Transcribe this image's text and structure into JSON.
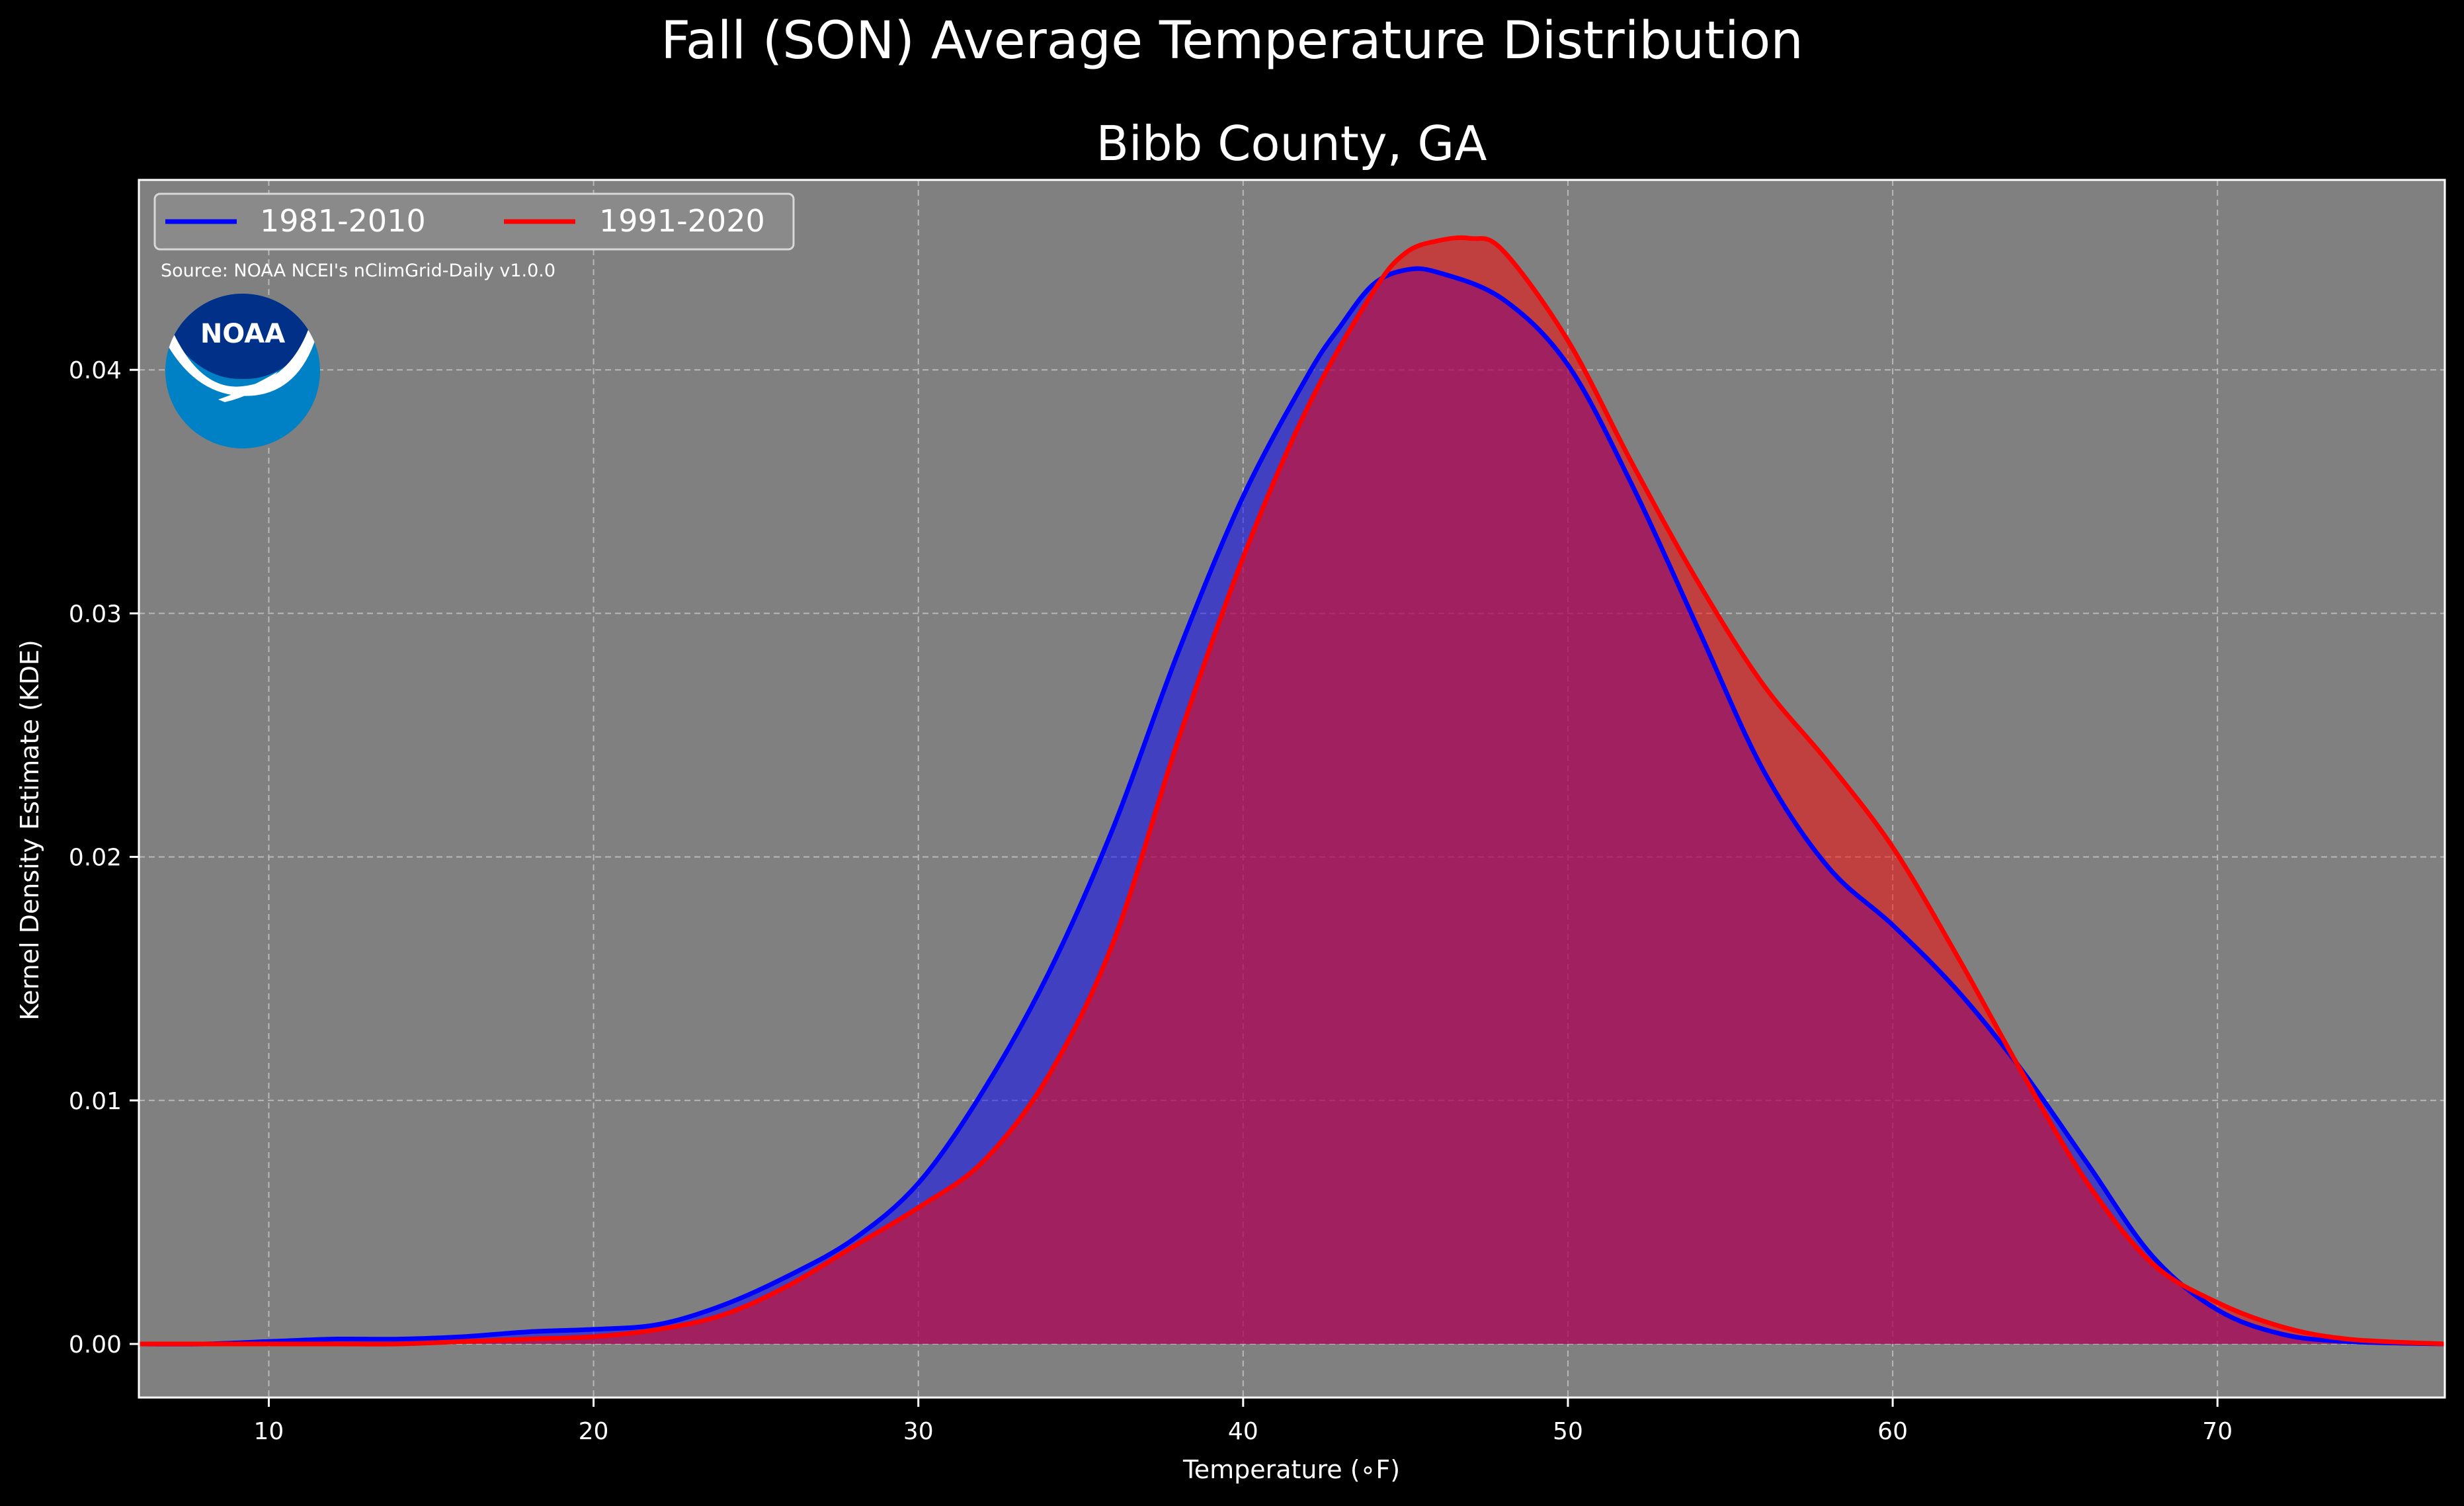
{
  "chart_data": {
    "type": "area",
    "title": "Fall (SON) Average Temperature Distribution",
    "subtitle": "Bibb County, GA",
    "xlabel": "Temperature ($^\\circ$F)",
    "xlabel_display": "Temperature (∘F)",
    "ylabel": "Kernel Density Estimate (KDE)",
    "xlim": [
      6,
      77
    ],
    "ylim": [
      -0.0022,
      0.0478
    ],
    "xticks": [
      10,
      20,
      30,
      40,
      50,
      60,
      70
    ],
    "yticks": [
      0.0,
      0.01,
      0.02,
      0.03,
      0.04
    ],
    "ytick_labels": [
      "0.00",
      "0.01",
      "0.02",
      "0.03",
      "0.04"
    ],
    "grid": true,
    "legend_placement": "top-left",
    "source_note": "Source: NOAA NCEI's nClimGrid-Daily v1.0.0",
    "logo_text": "NOAA",
    "colors": {
      "background": "#000000",
      "plot_background": "#808080",
      "series_1": "#0000ff",
      "series_2": "#ff0000"
    },
    "series": [
      {
        "name": "1981-2010",
        "color": "#0000ff",
        "fill": "#0000ff",
        "fill_opacity": 0.5,
        "x": [
          6,
          8,
          10,
          12,
          14,
          16,
          18,
          20,
          22,
          24,
          26,
          28,
          30,
          32,
          34,
          36,
          38,
          40,
          42,
          43,
          44,
          45,
          46,
          48,
          50,
          52,
          54,
          56,
          58,
          60,
          62,
          64,
          66,
          68,
          70,
          72,
          74,
          77
        ],
        "y": [
          0.0,
          0.0,
          0.0001,
          0.0002,
          0.0002,
          0.0003,
          0.0005,
          0.0006,
          0.0008,
          0.0016,
          0.0028,
          0.0043,
          0.0066,
          0.0104,
          0.0152,
          0.0212,
          0.0284,
          0.0348,
          0.0398,
          0.0418,
          0.0435,
          0.0441,
          0.044,
          0.0429,
          0.0402,
          0.0352,
          0.0294,
          0.0236,
          0.0196,
          0.0172,
          0.0145,
          0.0112,
          0.0074,
          0.0036,
          0.0014,
          0.0004,
          0.0001,
          0.0
        ]
      },
      {
        "name": "1991-2020",
        "color": "#ff0000",
        "fill": "#ff0000",
        "fill_opacity": 0.5,
        "x": [
          6,
          8,
          10,
          12,
          14,
          16,
          18,
          20,
          22,
          24,
          26,
          28,
          30,
          32,
          34,
          36,
          38,
          40,
          42,
          44,
          45,
          46,
          47,
          48,
          50,
          52,
          54,
          56,
          58,
          60,
          62,
          64,
          66,
          68,
          70,
          72,
          74,
          77
        ],
        "y": [
          0.0,
          0.0,
          0.0,
          0.0,
          0.0,
          0.0001,
          0.0002,
          0.0003,
          0.0006,
          0.0012,
          0.0024,
          0.004,
          0.0056,
          0.0075,
          0.011,
          0.0165,
          0.0248,
          0.0323,
          0.0385,
          0.0432,
          0.0448,
          0.0453,
          0.0454,
          0.0449,
          0.0412,
          0.0361,
          0.0313,
          0.0271,
          0.0239,
          0.0204,
          0.0159,
          0.0111,
          0.0066,
          0.0033,
          0.0017,
          0.0007,
          0.0002,
          0.0
        ]
      }
    ]
  }
}
